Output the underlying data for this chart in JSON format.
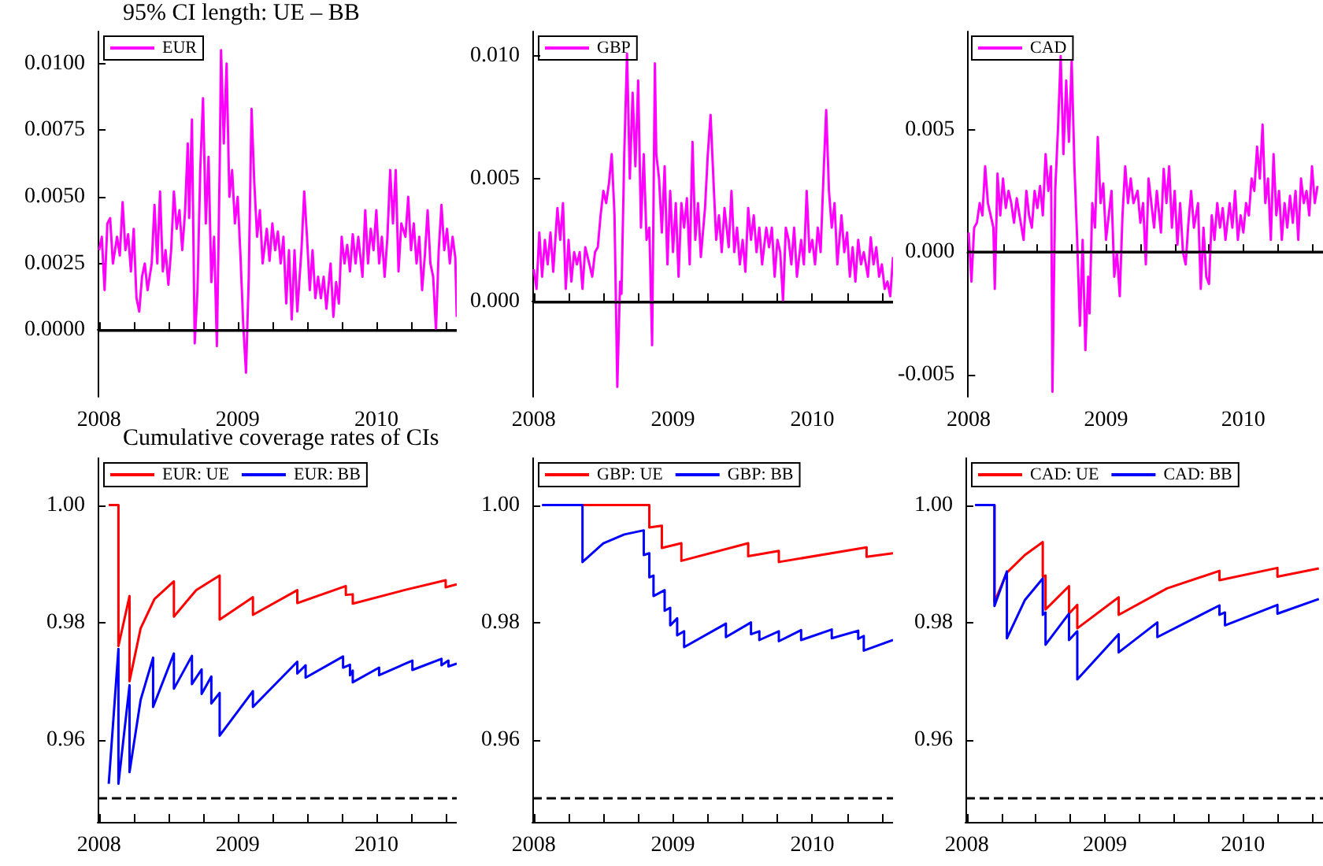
{
  "chart_data": [
    {
      "type": "line",
      "title": "95% CI length: UE – BB",
      "legend": "top left",
      "marker": "none",
      "line_style": "solid",
      "xlim": [
        2007.99,
        2010.58
      ],
      "xticks": [
        2008,
        {
          "value": 2008.25,
          "label": null
        },
        {
          "value": 2008.5,
          "label": null
        },
        {
          "value": 2008.75,
          "label": null
        },
        2009,
        {
          "value": 2009.25,
          "label": null
        },
        {
          "value": 2009.5,
          "label": null
        },
        {
          "value": 2009.75,
          "label": null
        },
        2010,
        {
          "value": 2010.25,
          "label": null
        },
        {
          "value": 2010.5,
          "label": null
        }
      ],
      "ylim": [
        -0.0025,
        0.0112
      ],
      "yticks": [
        {
          "value": 0,
          "label": "0.0000"
        },
        {
          "value": 0.0025,
          "label": "0.0025"
        },
        {
          "value": 0.005,
          "label": "0.0050"
        },
        {
          "value": 0.0075,
          "label": "0.0075"
        },
        {
          "value": 0.01,
          "label": "0.0100"
        }
      ],
      "ref_lines": [
        {
          "axis": "y",
          "value": 0,
          "color": "#000000",
          "line_style": "solid"
        }
      ],
      "series": [
        {
          "name": "EUR",
          "color": "#ff00ff",
          "x": [
            2008,
            2008.02,
            2008.04,
            2008.06,
            2008.08,
            2008.1,
            2008.13,
            2008.15,
            2008.17,
            2008.19,
            2008.21,
            2008.23,
            2008.25,
            2008.27,
            2008.29,
            2008.31,
            2008.33,
            2008.35,
            2008.38,
            2008.4,
            2008.42,
            2008.44,
            2008.46,
            2008.48,
            2008.5,
            2008.52,
            2008.54,
            2008.56,
            2008.58,
            2008.6,
            2008.62,
            2008.64,
            2008.65,
            2008.67,
            2008.69,
            2008.71,
            2008.73,
            2008.75,
            2008.77,
            2008.79,
            2008.81,
            2008.83,
            2008.85,
            2008.87,
            2008.88,
            2008.9,
            2008.92,
            2008.94,
            2008.96,
            2008.98,
            2009,
            2009.02,
            2009.04,
            2009.06,
            2009.08,
            2009.1,
            2009.12,
            2009.14,
            2009.16,
            2009.18,
            2009.21,
            2009.23,
            2009.25,
            2009.27,
            2009.29,
            2009.31,
            2009.33,
            2009.35,
            2009.37,
            2009.39,
            2009.41,
            2009.43,
            2009.46,
            2009.48,
            2009.5,
            2009.52,
            2009.54,
            2009.56,
            2009.58,
            2009.6,
            2009.62,
            2009.64,
            2009.67,
            2009.69,
            2009.71,
            2009.73,
            2009.75,
            2009.77,
            2009.79,
            2009.81,
            2009.83,
            2009.85,
            2009.87,
            2009.9,
            2009.92,
            2009.94,
            2009.96,
            2009.98,
            2010,
            2010.02,
            2010.04,
            2010.06,
            2010.08,
            2010.1,
            2010.12,
            2010.14,
            2010.16,
            2010.18,
            2010.21,
            2010.23,
            2010.25,
            2010.27,
            2010.29,
            2010.31,
            2010.33,
            2010.35,
            2010.37,
            2010.39,
            2010.41,
            2010.43,
            2010.45,
            2010.47,
            2010.49,
            2010.51,
            2010.53,
            2010.55,
            2010.57,
            2010.58
          ],
          "values": [
            0.003,
            0.0035,
            0.0015,
            0.004,
            0.0042,
            0.0025,
            0.0035,
            0.0028,
            0.0048,
            0.003,
            0.0036,
            0.0022,
            0.0038,
            0.0012,
            0.0007,
            0.002,
            0.0025,
            0.0015,
            0.0025,
            0.0047,
            0.0025,
            0.0052,
            0.0022,
            0.003,
            0.0017,
            0.003,
            0.0052,
            0.0038,
            0.0045,
            0.003,
            0.0044,
            0.007,
            0.0042,
            0.0079,
            -0.0005,
            0.0015,
            0.006,
            0.0087,
            0.004,
            0.0065,
            0.0018,
            0.0035,
            -0.0006,
            0.006,
            0.0105,
            0.007,
            0.01,
            0.005,
            0.006,
            0.004,
            0.005,
            0.0028,
            0.0002,
            -0.0016,
            0.002,
            0.0083,
            0.0055,
            0.0035,
            0.0045,
            0.0025,
            0.0038,
            0.0026,
            0.004,
            0.003,
            0.0037,
            0.0025,
            0.0035,
            0.001,
            0.003,
            0.0004,
            0.003,
            0.0007,
            0.003,
            0.0052,
            0.0035,
            0.0015,
            0.003,
            0.0012,
            0.002,
            0.0012,
            0.002,
            0.0008,
            0.0025,
            0.0005,
            0.0018,
            0.001,
            0.0035,
            0.0025,
            0.0032,
            0.0022,
            0.0036,
            0.0025,
            0.0035,
            0.002,
            0.0045,
            0.0025,
            0.0038,
            0.003,
            0.0045,
            0.0025,
            0.0035,
            0.002,
            0.0035,
            0.006,
            0.004,
            0.006,
            0.0022,
            0.004,
            0.0035,
            0.005,
            0.003,
            0.004,
            0.0025,
            0.0035,
            0.0015,
            0.0028,
            0.0045,
            0.0025,
            0.002,
            0,
            0.003,
            0.0047,
            0.003,
            0.0038,
            0.0025,
            0.0035,
            0.0027,
            0.0005
          ]
        }
      ]
    },
    {
      "type": "line",
      "legend": "top left",
      "marker": "none",
      "line_style": "solid",
      "xlim": [
        2007.99,
        2010.58
      ],
      "xticks": [
        2008,
        {
          "value": 2008.25,
          "label": null
        },
        {
          "value": 2008.5,
          "label": null
        },
        {
          "value": 2008.75,
          "label": null
        },
        2009,
        {
          "value": 2009.25,
          "label": null
        },
        {
          "value": 2009.5,
          "label": null
        },
        {
          "value": 2009.75,
          "label": null
        },
        2010,
        {
          "value": 2010.25,
          "label": null
        },
        {
          "value": 2010.5,
          "label": null
        }
      ],
      "ylim": [
        -0.0039,
        0.011
      ],
      "yticks": [
        {
          "value": 0,
          "label": "0.000"
        },
        0.005,
        {
          "value": 0.01,
          "label": "0.010"
        }
      ],
      "ref_lines": [
        {
          "axis": "y",
          "value": 0,
          "color": "#000000",
          "line_style": "solid"
        }
      ],
      "series": [
        {
          "name": "GBP",
          "color": "#ff00ff",
          "x": [
            2008,
            2008.02,
            2008.04,
            2008.06,
            2008.08,
            2008.1,
            2008.12,
            2008.14,
            2008.17,
            2008.19,
            2008.21,
            2008.23,
            2008.25,
            2008.27,
            2008.29,
            2008.31,
            2008.33,
            2008.35,
            2008.37,
            2008.4,
            2008.42,
            2008.44,
            2008.46,
            2008.48,
            2008.5,
            2008.52,
            2008.54,
            2008.56,
            2008.58,
            2008.6,
            2008.62,
            2008.63,
            2008.65,
            2008.67,
            2008.69,
            2008.71,
            2008.73,
            2008.75,
            2008.77,
            2008.79,
            2008.81,
            2008.83,
            2008.85,
            2008.87,
            2008.88,
            2008.9,
            2008.92,
            2008.94,
            2008.96,
            2008.98,
            2009,
            2009.02,
            2009.04,
            2009.06,
            2009.08,
            2009.1,
            2009.12,
            2009.14,
            2009.16,
            2009.18,
            2009.2,
            2009.23,
            2009.25,
            2009.27,
            2009.29,
            2009.31,
            2009.33,
            2009.35,
            2009.37,
            2009.4,
            2009.42,
            2009.44,
            2009.46,
            2009.48,
            2009.5,
            2009.52,
            2009.54,
            2009.56,
            2009.58,
            2009.6,
            2009.62,
            2009.64,
            2009.67,
            2009.69,
            2009.71,
            2009.73,
            2009.75,
            2009.77,
            2009.79,
            2009.81,
            2009.83,
            2009.85,
            2009.87,
            2009.89,
            2009.92,
            2009.94,
            2009.96,
            2009.98,
            2010,
            2010.02,
            2010.04,
            2010.06,
            2010.08,
            2010.1,
            2010.12,
            2010.14,
            2010.16,
            2010.18,
            2010.21,
            2010.23,
            2010.25,
            2010.27,
            2010.29,
            2010.31,
            2010.33,
            2010.35,
            2010.37,
            2010.4,
            2010.42,
            2010.44,
            2010.46,
            2010.48,
            2010.5,
            2010.52,
            2010.54,
            2010.56,
            2010.58
          ],
          "values": [
            0.0013,
            0.0005,
            0.0028,
            0.001,
            0.0025,
            0.0015,
            0.0028,
            0.0012,
            0.0038,
            0.0025,
            0.004,
            0.0005,
            0.0025,
            0.0008,
            0.002,
            0.0015,
            0.002,
            0.0005,
            0.0022,
            0.0015,
            0.001,
            0.002,
            0.0022,
            0.0035,
            0.0045,
            0.004,
            0.0048,
            0.006,
            0.0035,
            -0.0035,
            0.0008,
            0.0003,
            0.006,
            0.0101,
            0.005,
            0.0085,
            0.0055,
            0.009,
            0.003,
            0.006,
            0.0025,
            0.003,
            -0.0018,
            0.0097,
            0.006,
            0.005,
            0.0028,
            0.0055,
            0.0015,
            0.0045,
            0.002,
            0.004,
            0.001,
            0.004,
            0.003,
            0.0042,
            0.0015,
            0.0065,
            0.0025,
            0.004,
            0.0018,
            0.0038,
            0.006,
            0.0076,
            0.005,
            0.0025,
            0.0035,
            0.002,
            0.0038,
            0.0022,
            0.0045,
            0.002,
            0.003,
            0.0015,
            0.0025,
            0.0012,
            0.0038,
            0.0025,
            0.0035,
            0.002,
            0.003,
            0.0015,
            0.003,
            0.0022,
            0.003,
            0.001,
            0.0025,
            0.002,
            0,
            0.003,
            0.0025,
            0.0015,
            0.003,
            0.001,
            0.0025,
            0.0015,
            0.0045,
            0.002,
            0.0025,
            0.0015,
            0.003,
            0.002,
            0.005,
            0.0078,
            0.0045,
            0.003,
            0.004,
            0.0015,
            0.0035,
            0.002,
            0.0028,
            0.001,
            0.0022,
            0.0008,
            0.0025,
            0.0015,
            0.002,
            0.001,
            0.0026,
            0.0015,
            0.0022,
            0.001,
            0.0015,
            0.0005,
            0.0008,
            0.0002,
            0.0018
          ]
        }
      ]
    },
    {
      "type": "line",
      "legend": "top left",
      "marker": "none",
      "line_style": "solid",
      "xlim": [
        2007.99,
        2010.58
      ],
      "xticks": [
        2008,
        {
          "value": 2008.25,
          "label": null
        },
        {
          "value": 2008.5,
          "label": null
        },
        {
          "value": 2008.75,
          "label": null
        },
        2009,
        {
          "value": 2009.25,
          "label": null
        },
        {
          "value": 2009.5,
          "label": null
        },
        {
          "value": 2009.75,
          "label": null
        },
        2010,
        {
          "value": 2010.25,
          "label": null
        },
        {
          "value": 2010.5,
          "label": null
        }
      ],
      "ylim": [
        -0.0059,
        0.009
      ],
      "yticks": [
        -0.005,
        {
          "value": 0,
          "label": "0.000"
        },
        0.005
      ],
      "ref_lines": [
        {
          "axis": "y",
          "value": 0,
          "color": "#000000",
          "line_style": "solid"
        }
      ],
      "series": [
        {
          "name": "CAD",
          "color": "#ff00ff",
          "x": [
            2008,
            2008.02,
            2008.04,
            2008.06,
            2008.08,
            2008.1,
            2008.12,
            2008.14,
            2008.16,
            2008.18,
            2008.19,
            2008.21,
            2008.23,
            2008.25,
            2008.27,
            2008.29,
            2008.31,
            2008.33,
            2008.35,
            2008.37,
            2008.4,
            2008.42,
            2008.44,
            2008.46,
            2008.48,
            2008.5,
            2008.52,
            2008.54,
            2008.56,
            2008.58,
            2008.6,
            2008.61,
            2008.63,
            2008.65,
            2008.67,
            2008.69,
            2008.71,
            2008.73,
            2008.75,
            2008.77,
            2008.79,
            2008.81,
            2008.83,
            2008.85,
            2008.87,
            2008.88,
            2008.9,
            2008.92,
            2008.94,
            2008.96,
            2008.98,
            2009,
            2009.02,
            2009.04,
            2009.06,
            2009.08,
            2009.1,
            2009.12,
            2009.14,
            2009.16,
            2009.18,
            2009.2,
            2009.23,
            2009.25,
            2009.27,
            2009.29,
            2009.31,
            2009.33,
            2009.35,
            2009.37,
            2009.4,
            2009.42,
            2009.44,
            2009.46,
            2009.48,
            2009.5,
            2009.52,
            2009.54,
            2009.56,
            2009.58,
            2009.6,
            2009.62,
            2009.64,
            2009.67,
            2009.69,
            2009.71,
            2009.73,
            2009.75,
            2009.77,
            2009.79,
            2009.81,
            2009.83,
            2009.85,
            2009.87,
            2009.9,
            2009.92,
            2009.94,
            2009.96,
            2009.98,
            2010,
            2010.02,
            2010.04,
            2010.06,
            2010.08,
            2010.1,
            2010.12,
            2010.14,
            2010.16,
            2010.18,
            2010.2,
            2010.22,
            2010.24,
            2010.26,
            2010.28,
            2010.3,
            2010.32,
            2010.34,
            2010.36,
            2010.38,
            2010.4,
            2010.42,
            2010.44,
            2010.46,
            2010.48,
            2010.5,
            2010.52,
            2010.54
          ],
          "values": [
            0.0008,
            -0.0012,
            0.001,
            0.0012,
            0.002,
            0.0015,
            0.0035,
            0.002,
            0.0015,
            0.001,
            -0.0015,
            0.0032,
            0.0015,
            0.003,
            0.0018,
            0.0025,
            0.002,
            0.0012,
            0.0022,
            0.0015,
            0.0005,
            0.0025,
            0.0015,
            0.001,
            0.0025,
            0.0018,
            0.0027,
            0.0015,
            0.004,
            0.0025,
            0.0035,
            -0.0057,
            0.0025,
            0.005,
            0.008,
            0.004,
            0.007,
            0.0045,
            0.0078,
            0.0035,
            0.0005,
            -0.003,
            0.0005,
            -0.004,
            -0.001,
            -0.0025,
            0.002,
            0.001,
            0.0047,
            0.002,
            0.0028,
            0.0005,
            0.0015,
            0.0025,
            -0.001,
            0,
            -0.0018,
            0.0015,
            0.0035,
            0.002,
            0.003,
            0.002,
            0.0025,
            0.0012,
            0.002,
            -0.0005,
            0.003,
            0.002,
            0.001,
            0.0025,
            0.0008,
            0.0034,
            0.002,
            0.0035,
            0.001,
            0.0025,
            0.0003,
            0.002,
            0,
            -0.0005,
            0.0012,
            0.0025,
            0.001,
            0.002,
            -0.0015,
            0.001,
            -0.001,
            -0.0013,
            0.0015,
            0.0005,
            0.002,
            0.001,
            0.0018,
            0.0005,
            0.002,
            0.001,
            0.0025,
            0.0005,
            0.0015,
            0.0008,
            0.002,
            0.0015,
            0.003,
            0.0025,
            0.0043,
            0.003,
            0.0052,
            0.002,
            0.003,
            0.0005,
            0.004,
            0.0015,
            0.0025,
            0.0005,
            0.002,
            0.001,
            0.0023,
            0.0012,
            0.0025,
            0.0005,
            0.003,
            0.002,
            0.0025,
            0.0015,
            0.0035,
            0.002,
            0.0027
          ]
        }
      ]
    },
    {
      "type": "line",
      "title": "Cumulative coverage rates of CIs",
      "legend": "top left",
      "marker": "none",
      "line_style": "solid",
      "xlim": [
        2007.99,
        2010.58
      ],
      "xticks": [
        2008,
        {
          "value": 2008.25,
          "label": null
        },
        {
          "value": 2008.5,
          "label": null
        },
        {
          "value": 2008.75,
          "label": null
        },
        2009,
        {
          "value": 2009.25,
          "label": null
        },
        {
          "value": 2009.5,
          "label": null
        },
        {
          "value": 2009.75,
          "label": null
        },
        2010,
        {
          "value": 2010.25,
          "label": null
        },
        {
          "value": 2010.5,
          "label": null
        }
      ],
      "ylim": [
        0.946,
        1.008
      ],
      "yticks": [
        0.96,
        0.98,
        {
          "value": 1,
          "label": "1.00"
        }
      ],
      "ref_lines": [
        {
          "axis": "y",
          "value": 0.95,
          "color": "#000000",
          "line_style": "dashed"
        }
      ],
      "series": [
        {
          "name": "EUR: UE",
          "color": "#ff0000",
          "x": [
            2008.07,
            2008.14,
            2008.14,
            2008.22,
            2008.22,
            2008.3,
            2008.4,
            2008.54,
            2008.54,
            2008.7,
            2008.87,
            2008.87,
            2009.11,
            2009.11,
            2009.43,
            2009.43,
            2009.78,
            2009.78,
            2009.83,
            2009.83,
            2010.2,
            2010.5,
            2010.5,
            2010.58
          ],
          "values": [
            1,
            1,
            0.976,
            0.9845,
            0.97,
            0.979,
            0.984,
            0.987,
            0.981,
            0.9855,
            0.988,
            0.9805,
            0.9843,
            0.9813,
            0.9855,
            0.9833,
            0.9862,
            0.9847,
            0.9848,
            0.9832,
            0.9855,
            0.9872,
            0.986,
            0.9865
          ]
        },
        {
          "name": "EUR: BB",
          "color": "#0000ff",
          "x": [
            2008.07,
            2008.14,
            2008.14,
            2008.22,
            2008.22,
            2008.3,
            2008.39,
            2008.39,
            2008.54,
            2008.54,
            2008.67,
            2008.67,
            2008.74,
            2008.74,
            2008.81,
            2008.81,
            2008.87,
            2008.87,
            2009.11,
            2009.11,
            2009.43,
            2009.43,
            2009.49,
            2009.49,
            2009.76,
            2009.76,
            2009.81,
            2009.81,
            2009.83,
            2009.83,
            2010.02,
            2010.02,
            2010.26,
            2010.26,
            2010.47,
            2010.47,
            2010.52,
            2010.52,
            2010.58
          ],
          "values": [
            0.9525,
            0.9755,
            0.9525,
            0.9693,
            0.9545,
            0.9668,
            0.974,
            0.9656,
            0.9747,
            0.9687,
            0.9743,
            0.9695,
            0.972,
            0.9678,
            0.9708,
            0.9662,
            0.968,
            0.9607,
            0.9683,
            0.9656,
            0.9733,
            0.9713,
            0.9727,
            0.9706,
            0.9742,
            0.9723,
            0.9728,
            0.971,
            0.9718,
            0.9698,
            0.9723,
            0.971,
            0.9735,
            0.9719,
            0.9738,
            0.9727,
            0.9735,
            0.9725,
            0.973
          ]
        }
      ]
    },
    {
      "type": "line",
      "legend": "top left",
      "marker": "none",
      "line_style": "solid",
      "xlim": [
        2007.99,
        2010.58
      ],
      "xticks": [
        2008,
        {
          "value": 2008.25,
          "label": null
        },
        {
          "value": 2008.5,
          "label": null
        },
        {
          "value": 2008.75,
          "label": null
        },
        2009,
        {
          "value": 2009.25,
          "label": null
        },
        {
          "value": 2009.5,
          "label": null
        },
        {
          "value": 2009.75,
          "label": null
        },
        2010,
        {
          "value": 2010.25,
          "label": null
        },
        {
          "value": 2010.5,
          "label": null
        }
      ],
      "ylim": [
        0.946,
        1.008
      ],
      "yticks": [
        0.96,
        0.98,
        {
          "value": 1,
          "label": "1.00"
        }
      ],
      "ref_lines": [
        {
          "axis": "y",
          "value": 0.95,
          "color": "#000000",
          "line_style": "dashed"
        }
      ],
      "series": [
        {
          "name": "GBP: UE",
          "color": "#ff0000",
          "x": [
            2008.06,
            2008.83,
            2008.83,
            2008.92,
            2008.92,
            2009.06,
            2009.06,
            2009.54,
            2009.54,
            2009.76,
            2009.76,
            2010.39,
            2010.39,
            2010.58
          ],
          "values": [
            1,
            1,
            0.9962,
            0.9965,
            0.9927,
            0.9935,
            0.9905,
            0.9935,
            0.9913,
            0.9922,
            0.9903,
            0.9928,
            0.9912,
            0.9918
          ]
        },
        {
          "name": "GBP: BB",
          "color": "#0000ff",
          "x": [
            2008.06,
            2008.35,
            2008.35,
            2008.5,
            2008.65,
            2008.79,
            2008.79,
            2008.83,
            2008.83,
            2008.86,
            2008.86,
            2008.94,
            2008.94,
            2008.98,
            2008.98,
            2009.03,
            2009.03,
            2009.08,
            2009.08,
            2009.38,
            2009.38,
            2009.56,
            2009.56,
            2009.62,
            2009.62,
            2009.76,
            2009.76,
            2009.92,
            2009.92,
            2010.14,
            2010.14,
            2010.33,
            2010.33,
            2010.37,
            2010.37,
            2010.58
          ],
          "values": [
            1,
            1,
            0.9903,
            0.9935,
            0.995,
            0.9957,
            0.9915,
            0.9918,
            0.9877,
            0.988,
            0.9845,
            0.9855,
            0.982,
            0.9825,
            0.9795,
            0.9807,
            0.9778,
            0.9785,
            0.9758,
            0.9798,
            0.9775,
            0.98,
            0.978,
            0.9785,
            0.977,
            0.9785,
            0.9768,
            0.9787,
            0.977,
            0.9788,
            0.9773,
            0.9786,
            0.9772,
            0.9777,
            0.9752,
            0.977
          ]
        }
      ]
    },
    {
      "type": "line",
      "legend": "top left",
      "marker": "none",
      "line_style": "solid",
      "xlim": [
        2007.99,
        2010.58
      ],
      "xticks": [
        2008,
        {
          "value": 2008.25,
          "label": null
        },
        {
          "value": 2008.5,
          "label": null
        },
        {
          "value": 2008.75,
          "label": null
        },
        2009,
        {
          "value": 2009.25,
          "label": null
        },
        {
          "value": 2009.5,
          "label": null
        },
        {
          "value": 2009.75,
          "label": null
        },
        2010,
        {
          "value": 2010.25,
          "label": null
        },
        {
          "value": 2010.5,
          "label": null
        }
      ],
      "ylim": [
        0.946,
        1.008
      ],
      "yticks": [
        0.96,
        0.98,
        {
          "value": 1,
          "label": "1.00"
        }
      ],
      "ref_lines": [
        {
          "axis": "y",
          "value": 0.95,
          "color": "#000000",
          "line_style": "dashed"
        }
      ],
      "series": [
        {
          "name": "CAD: UE",
          "color": "#ff0000",
          "x": [
            2008.06,
            2008.2,
            2008.2,
            2008.29,
            2008.42,
            2008.55,
            2008.55,
            2008.57,
            2008.57,
            2008.74,
            2008.74,
            2008.8,
            2008.8,
            2009.1,
            2009.1,
            2009.45,
            2009.83,
            2009.83,
            2010.25,
            2010.25,
            2010.55
          ],
          "values": [
            1,
            1,
            0.9835,
            0.9885,
            0.9915,
            0.9937,
            0.9878,
            0.988,
            0.9822,
            0.9862,
            0.9815,
            0.983,
            0.979,
            0.9843,
            0.9813,
            0.9858,
            0.9888,
            0.9872,
            0.9893,
            0.9878,
            0.9892
          ]
        },
        {
          "name": "CAD: BB",
          "color": "#0000ff",
          "x": [
            2008.06,
            2008.2,
            2008.2,
            2008.29,
            2008.29,
            2008.42,
            2008.55,
            2008.55,
            2008.57,
            2008.57,
            2008.74,
            2008.74,
            2008.8,
            2008.8,
            2009.1,
            2009.1,
            2009.38,
            2009.38,
            2009.83,
            2009.83,
            2009.87,
            2009.87,
            2010.25,
            2010.25,
            2010.55
          ],
          "values": [
            1,
            1,
            0.9828,
            0.9887,
            0.9773,
            0.9838,
            0.9875,
            0.9813,
            0.9817,
            0.9762,
            0.9815,
            0.977,
            0.9785,
            0.9703,
            0.978,
            0.9749,
            0.98,
            0.9775,
            0.9829,
            0.9813,
            0.9817,
            0.9795,
            0.983,
            0.9815,
            0.984
          ]
        }
      ]
    }
  ]
}
